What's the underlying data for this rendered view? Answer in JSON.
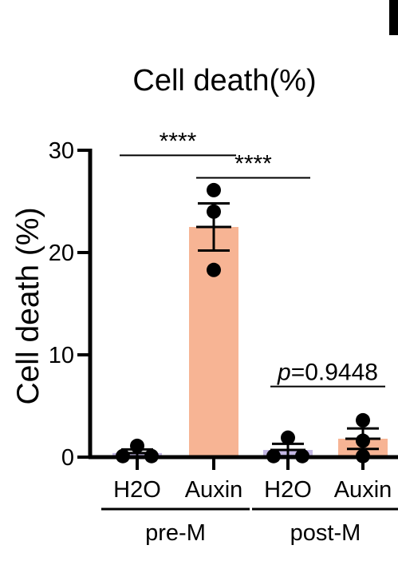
{
  "chart_data": {
    "type": "bar",
    "title": "Cell death(%)",
    "ylabel": "Cell death (%)",
    "xlabel": "",
    "ylim": [
      0,
      30
    ],
    "yticks": [
      0,
      10,
      20,
      30
    ],
    "categories": [
      "H2O",
      "Auxin",
      "H2O",
      "Auxin"
    ],
    "groups": [
      {
        "label": "pre-M",
        "categories": [
          0,
          1
        ]
      },
      {
        "label": "post-M",
        "categories": [
          2,
          3
        ]
      }
    ],
    "values": [
      0.4,
      22.5,
      0.7,
      1.8
    ],
    "errors": [
      0.35,
      2.3,
      0.6,
      1.0
    ],
    "points": [
      [
        0.1,
        1.1,
        0.1
      ],
      [
        26.1,
        24.0,
        18.3
      ],
      [
        0.1,
        1.9,
        0.1
      ],
      [
        3.6,
        1.6,
        0.1
      ]
    ],
    "bar_colors": [
      "#c3b7e3",
      "#f7b494",
      "#c3b7e3",
      "#f7b494"
    ],
    "grid": false,
    "annotations": [
      {
        "text": "****",
        "from": 0,
        "to": 1,
        "y": 29.5
      },
      {
        "text": "****",
        "from": 1,
        "to": 2,
        "y": 27.3
      },
      {
        "text_prefix": "p",
        "text": "=0.9448",
        "from": 2,
        "to": 3,
        "y": 6.9
      }
    ]
  }
}
